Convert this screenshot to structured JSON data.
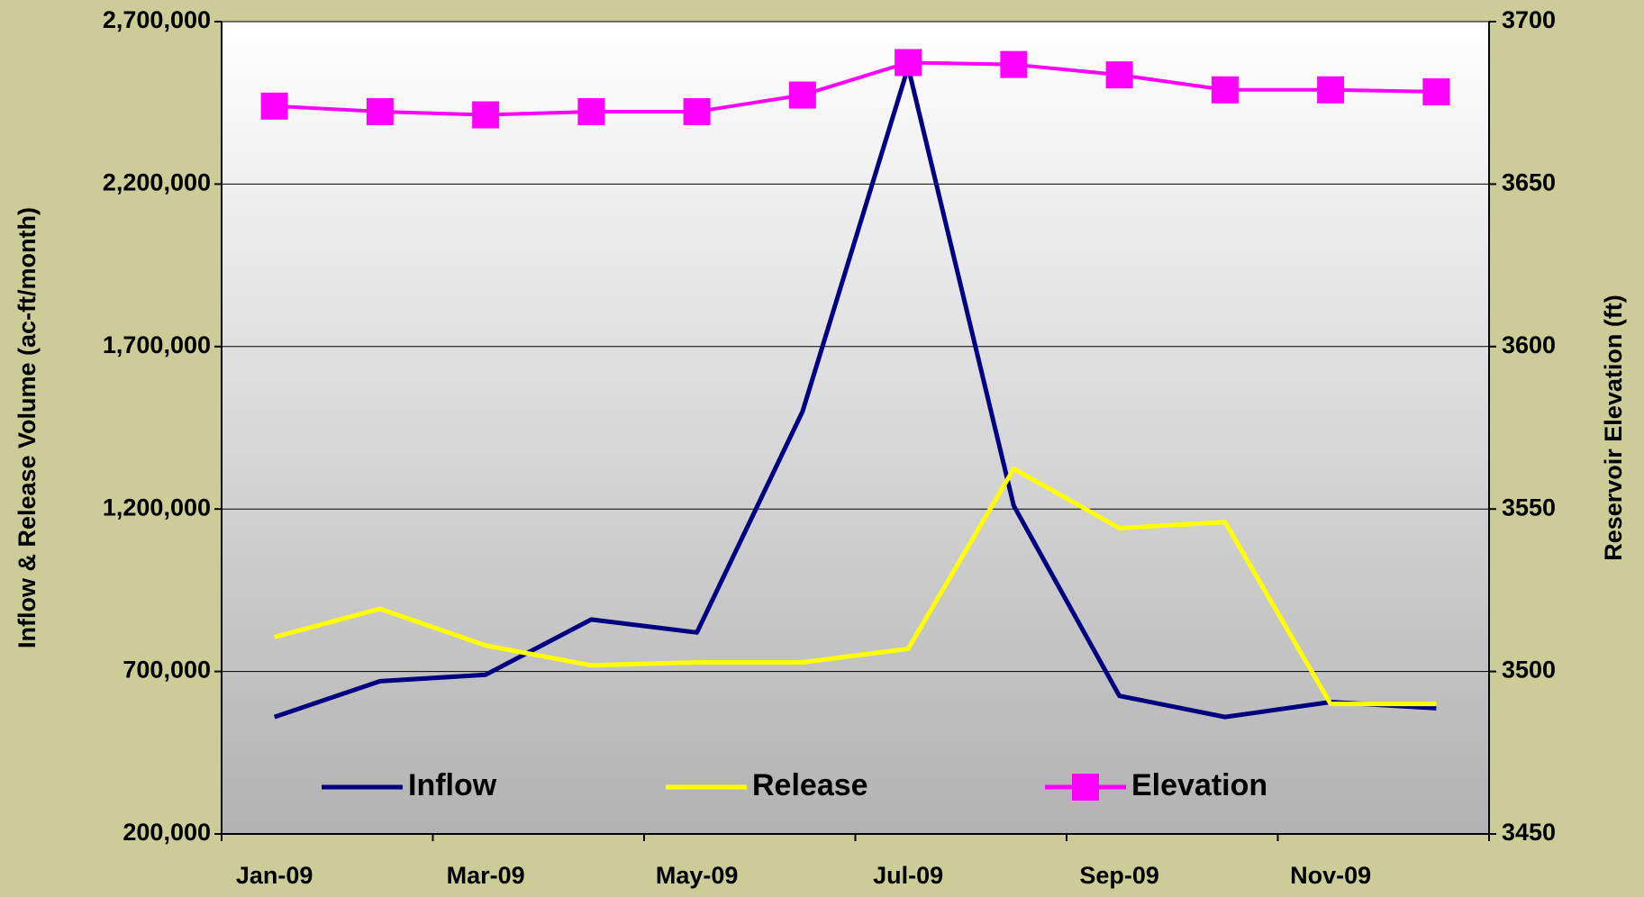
{
  "chart_data": {
    "type": "line",
    "categories": [
      "Jan-09",
      null,
      "Mar-09",
      null,
      "May-09",
      null,
      "Jul-09",
      null,
      "Sep-09",
      null,
      "Nov-09",
      null
    ],
    "y_label": "Inflow & Release Volume (ac-ft/month)",
    "y2_label": "Reservoir Elevation (ft)",
    "ylim": [
      200000,
      2700000
    ],
    "yticks": [
      {
        "value": 200000,
        "label": "200,000"
      },
      {
        "value": 700000,
        "label": "700,000"
      },
      {
        "value": 1200000,
        "label": "1,200,000"
      },
      {
        "value": 1700000,
        "label": "1,700,000"
      },
      {
        "value": 2200000,
        "label": "2,200,000"
      },
      {
        "value": 2700000,
        "label": "2,700,000"
      }
    ],
    "y2lim": [
      3450,
      3700
    ],
    "y2ticks": [
      3450,
      3500,
      3550,
      3600,
      3650,
      3700
    ],
    "grid": true,
    "legend": "bottom",
    "series": [
      {
        "name": "Inflow",
        "color": "#000080",
        "values": [
          560000,
          670000,
          690000,
          860000,
          820000,
          1500000,
          2560000,
          1210000,
          625000,
          560000,
          606000,
          587000
        ]
      },
      {
        "name": "Release",
        "color": "#ffff00",
        "values": [
          806000,
          893000,
          780000,
          719000,
          728000,
          728000,
          770000,
          1324000,
          1141000,
          1160000,
          600000,
          600000
        ]
      },
      {
        "name": "Elevation",
        "color": "#ff00ff",
        "marker": "square",
        "axis": "y2",
        "values": [
          3674,
          3672.3,
          3671.3,
          3672.3,
          3672.3,
          3677.4,
          3687.4,
          3686.8,
          3683.6,
          3679,
          3679,
          3678.4
        ]
      }
    ]
  }
}
